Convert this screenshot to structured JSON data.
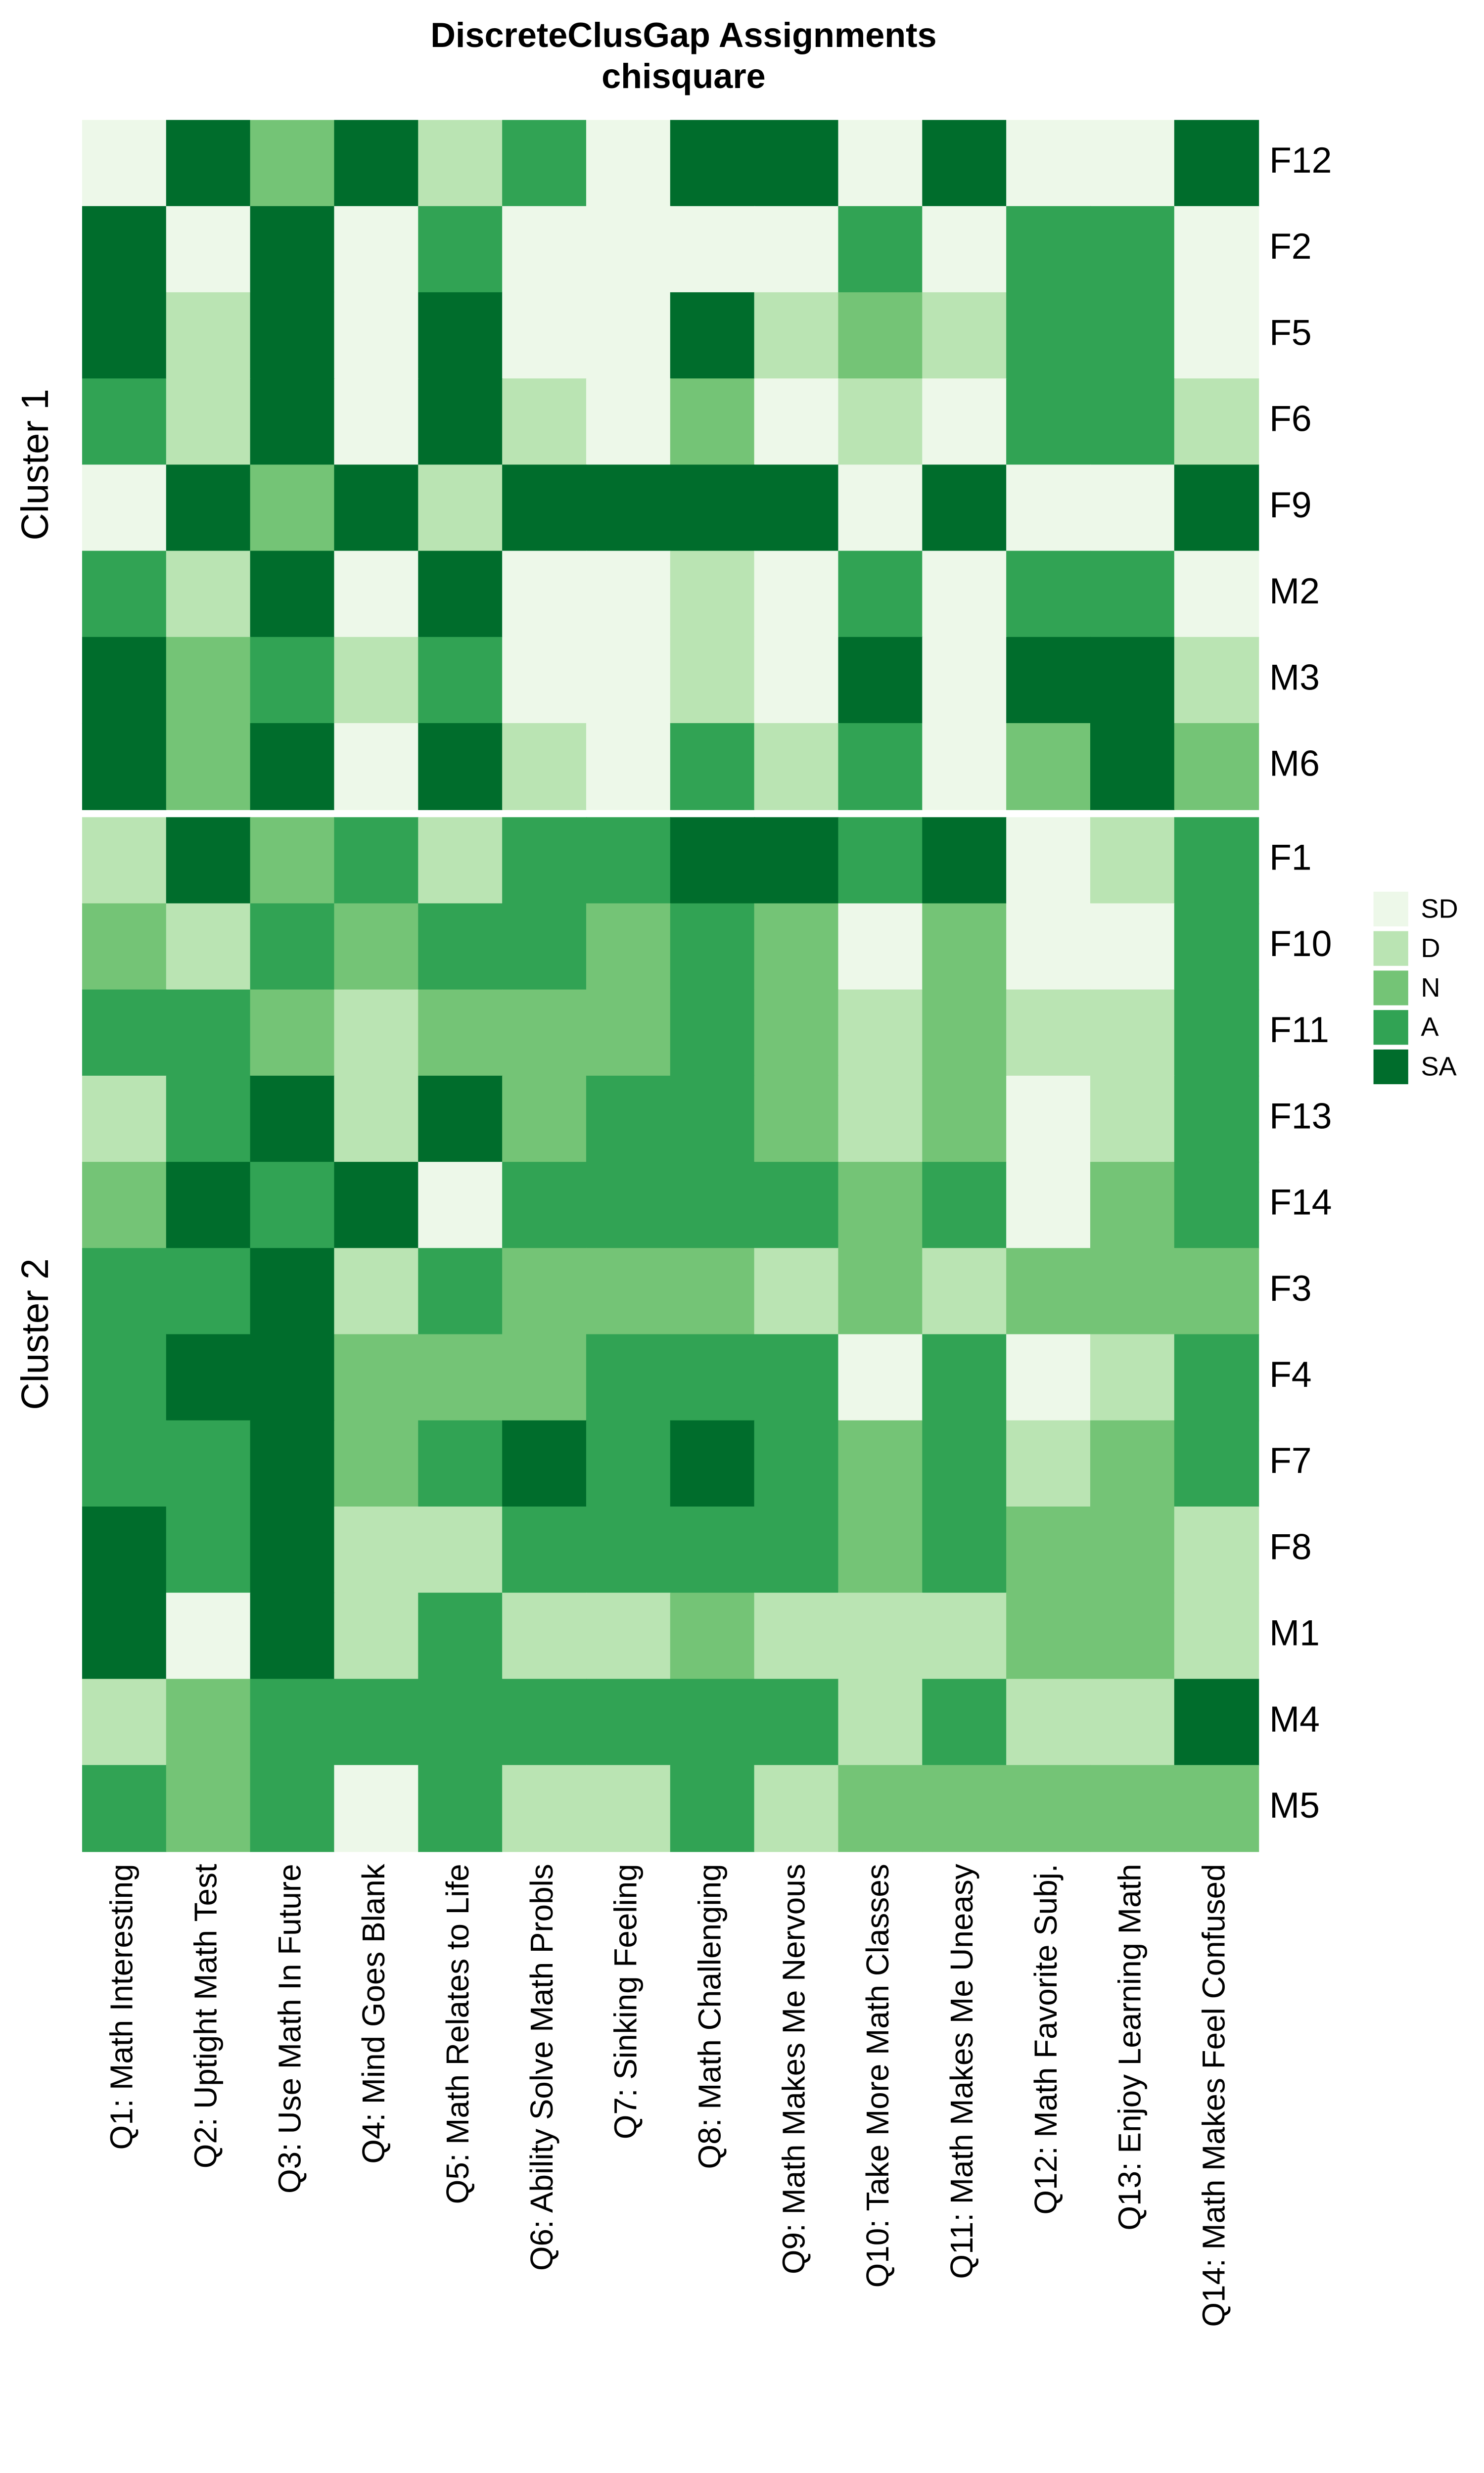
{
  "chart_data": {
    "type": "heatmap",
    "title": "DiscreteClusGap Assignments",
    "subtitle": "chisquare",
    "columns": [
      "Q1: Math Interesting",
      "Q2: Uptight Math Test",
      "Q3: Use Math In Future",
      "Q4: Mind Goes Blank",
      "Q5: Math Relates to Life",
      "Q6: Ability Solve Math Probls",
      "Q7: Sinking Feeling",
      "Q8: Math Challenging",
      "Q9: Math Makes Me Nervous",
      "Q10: Take More Math Classes",
      "Q11: Math Makes Me Uneasy",
      "Q12: Math Favorite Subj.",
      "Q13: Enjoy Learning Math",
      "Q14: Math Makes Feel Confused"
    ],
    "legend": [
      {
        "label": "SD",
        "color": "#edf8e9"
      },
      {
        "label": "D",
        "color": "#bae4b3"
      },
      {
        "label": "N",
        "color": "#74c476"
      },
      {
        "label": "A",
        "color": "#31a354"
      },
      {
        "label": "SA",
        "color": "#006d2c"
      }
    ],
    "groups": [
      {
        "name": "Cluster 1",
        "rows": [
          "F12",
          "F2",
          "F5",
          "F6",
          "F9",
          "M2",
          "M3",
          "M6"
        ],
        "values": [
          [
            "SD",
            "SA",
            "N",
            "SA",
            "D",
            "A",
            "SD",
            "SA",
            "SA",
            "SD",
            "SA",
            "SD",
            "SD",
            "SA"
          ],
          [
            "SA",
            "SD",
            "SA",
            "SD",
            "A",
            "SD",
            "SD",
            "SD",
            "SD",
            "A",
            "SD",
            "A",
            "A",
            "SD"
          ],
          [
            "SA",
            "D",
            "SA",
            "SD",
            "SA",
            "SD",
            "SD",
            "SA",
            "D",
            "N",
            "D",
            "A",
            "A",
            "SD"
          ],
          [
            "A",
            "D",
            "SA",
            "SD",
            "SA",
            "D",
            "SD",
            "N",
            "SD",
            "D",
            "SD",
            "A",
            "A",
            "D"
          ],
          [
            "SD",
            "SA",
            "N",
            "SA",
            "D",
            "SA",
            "SA",
            "SA",
            "SA",
            "SD",
            "SA",
            "SD",
            "SD",
            "SA"
          ],
          [
            "A",
            "D",
            "SA",
            "SD",
            "SA",
            "SD",
            "SD",
            "D",
            "SD",
            "A",
            "SD",
            "A",
            "A",
            "SD"
          ],
          [
            "SA",
            "N",
            "A",
            "D",
            "A",
            "SD",
            "SD",
            "D",
            "SD",
            "SA",
            "SD",
            "SA",
            "SA",
            "D"
          ],
          [
            "SA",
            "N",
            "SA",
            "SD",
            "SA",
            "D",
            "SD",
            "A",
            "D",
            "A",
            "SD",
            "N",
            "SA",
            "N"
          ]
        ]
      },
      {
        "name": "Cluster 2",
        "rows": [
          "F1",
          "F10",
          "F11",
          "F13",
          "F14",
          "F3",
          "F4",
          "F7",
          "F8",
          "M1",
          "M4",
          "M5"
        ],
        "values": [
          [
            "D",
            "SA",
            "N",
            "A",
            "D",
            "A",
            "A",
            "SA",
            "SA",
            "A",
            "SA",
            "SD",
            "D",
            "A"
          ],
          [
            "N",
            "D",
            "A",
            "N",
            "A",
            "A",
            "N",
            "A",
            "N",
            "SD",
            "N",
            "SD",
            "SD",
            "A"
          ],
          [
            "A",
            "A",
            "N",
            "D",
            "N",
            "N",
            "N",
            "A",
            "N",
            "D",
            "N",
            "D",
            "D",
            "A"
          ],
          [
            "D",
            "A",
            "SA",
            "D",
            "SA",
            "N",
            "A",
            "A",
            "N",
            "D",
            "N",
            "SD",
            "D",
            "A"
          ],
          [
            "N",
            "SA",
            "A",
            "SA",
            "SD",
            "A",
            "A",
            "A",
            "A",
            "N",
            "A",
            "SD",
            "N",
            "A"
          ],
          [
            "A",
            "A",
            "SA",
            "D",
            "A",
            "N",
            "N",
            "N",
            "D",
            "N",
            "D",
            "N",
            "N",
            "N"
          ],
          [
            "A",
            "SA",
            "SA",
            "N",
            "N",
            "N",
            "A",
            "A",
            "A",
            "SD",
            "A",
            "SD",
            "D",
            "A"
          ],
          [
            "A",
            "A",
            "SA",
            "N",
            "A",
            "SA",
            "A",
            "SA",
            "A",
            "N",
            "A",
            "D",
            "N",
            "A"
          ],
          [
            "SA",
            "A",
            "SA",
            "D",
            "D",
            "A",
            "A",
            "A",
            "A",
            "N",
            "A",
            "N",
            "N",
            "D"
          ],
          [
            "SA",
            "SD",
            "SA",
            "D",
            "A",
            "D",
            "D",
            "N",
            "D",
            "D",
            "D",
            "N",
            "N",
            "D"
          ],
          [
            "D",
            "N",
            "A",
            "A",
            "A",
            "A",
            "A",
            "A",
            "A",
            "D",
            "A",
            "D",
            "D",
            "SA"
          ],
          [
            "A",
            "N",
            "A",
            "SD",
            "A",
            "D",
            "D",
            "A",
            "D",
            "N",
            "N",
            "N",
            "N",
            "N"
          ]
        ]
      }
    ]
  }
}
